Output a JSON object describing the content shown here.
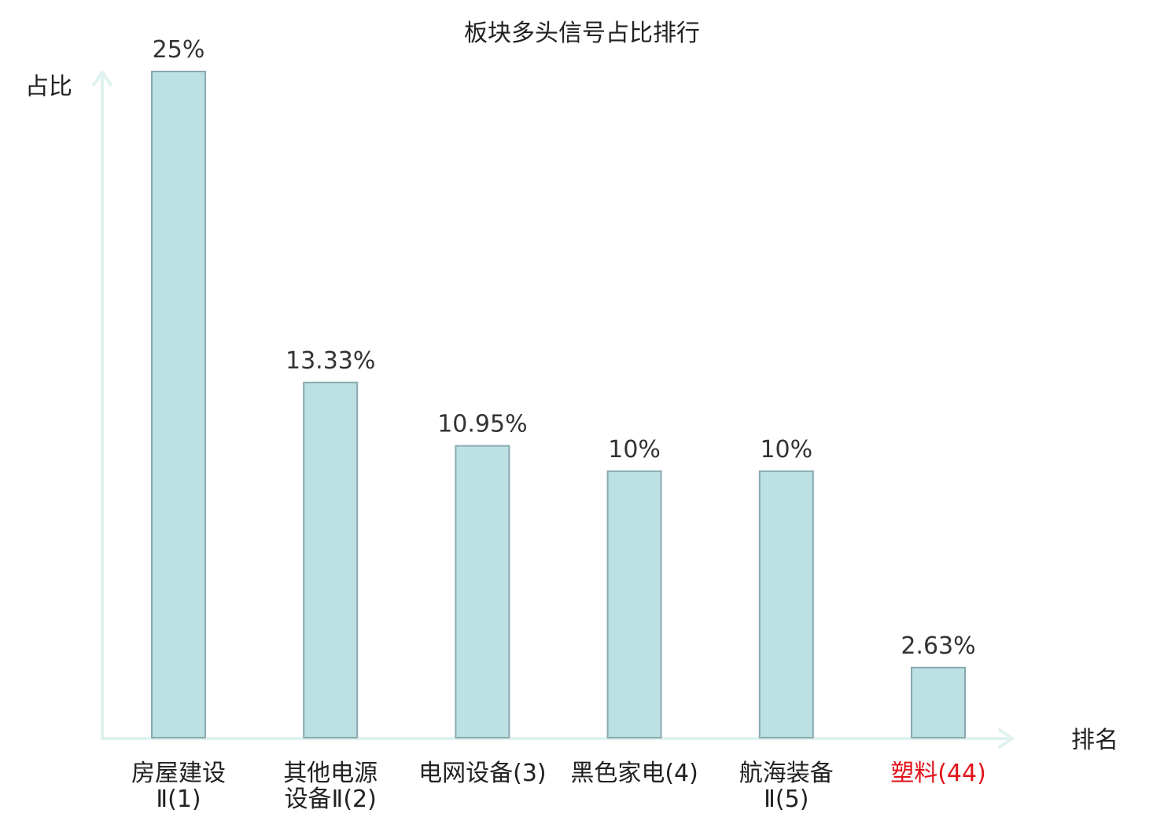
{
  "chart_data": {
    "type": "bar",
    "title": "板块多头信号占比排行",
    "ylabel": "占比",
    "xlabel": "排名",
    "categories": [
      [
        "房屋建设",
        "Ⅱ(1)"
      ],
      [
        "其他电源",
        "设备Ⅱ(2)"
      ],
      [
        "电网设备(3)"
      ],
      [
        "黑色家电(4)"
      ],
      [
        "航海装备",
        "Ⅱ(5)"
      ],
      [
        "塑料(44)"
      ]
    ],
    "values": [
      25,
      13.33,
      10.95,
      10,
      10,
      2.63
    ],
    "value_labels": [
      "25%",
      "13.33%",
      "10.95%",
      "10%",
      "10%",
      "2.63%"
    ],
    "highlight_index": 5,
    "ylim": [
      0,
      25
    ],
    "grid": false,
    "colors": {
      "bar_fill": "#bce0e3",
      "bar_stroke": "#87a9ac",
      "axis": "#dff2ef",
      "highlight_text": "#e3121a"
    }
  }
}
